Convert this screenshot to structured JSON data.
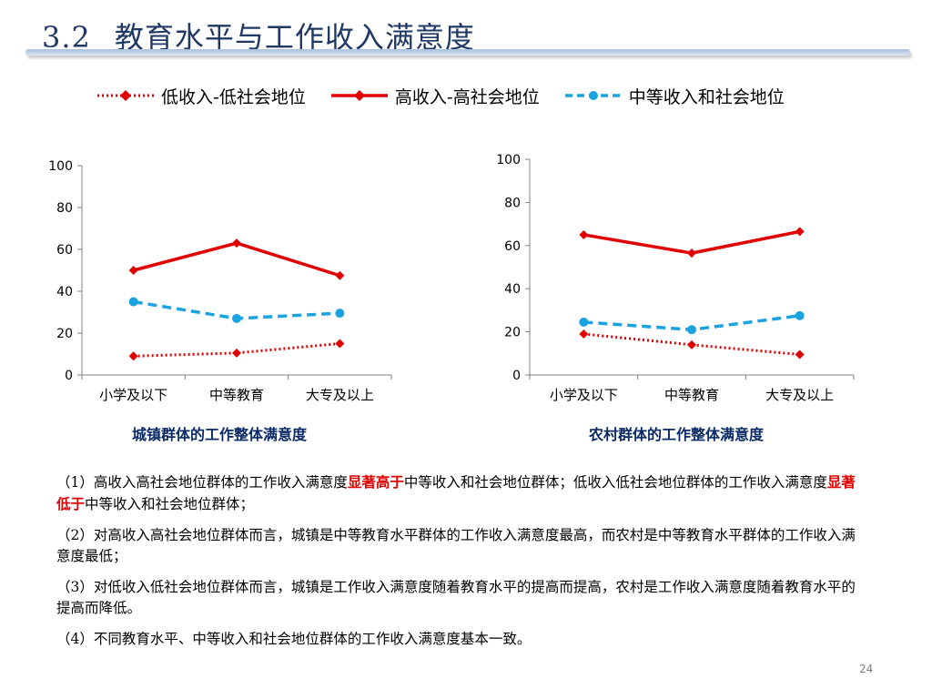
{
  "slide": {
    "title_num": "3.2",
    "title_text": "教育水平与工作收入满意度",
    "page_number": "24"
  },
  "legend": [
    {
      "label": "低收入-低社会地位",
      "color": "#e00000",
      "style": "dotted",
      "marker": "diamond"
    },
    {
      "label": "高收入-高社会地位",
      "color": "#e00000",
      "style": "solid",
      "marker": "diamond"
    },
    {
      "label": "中等收入和社会地位",
      "color": "#1aa3e0",
      "style": "dashed",
      "marker": "circle"
    }
  ],
  "chart_data": [
    {
      "type": "line",
      "title": "城镇群体的工作整体满意度",
      "categories": [
        "小学及以下",
        "中等教育",
        "大专及以上"
      ],
      "ylim": [
        0,
        100
      ],
      "yticks": [
        0,
        20,
        40,
        60,
        80,
        100
      ],
      "grid": false,
      "series": [
        {
          "name": "低收入-低社会地位",
          "values": [
            9,
            10.5,
            15
          ]
        },
        {
          "name": "高收入-高社会地位",
          "values": [
            50,
            63,
            47.5
          ]
        },
        {
          "name": "中等收入和社会地位",
          "values": [
            35,
            27,
            29.5
          ]
        }
      ]
    },
    {
      "type": "line",
      "title": "农村群体的工作整体满意度",
      "categories": [
        "小学及以下",
        "中等教育",
        "大专及以上"
      ],
      "ylim": [
        0,
        100
      ],
      "yticks": [
        0,
        20,
        40,
        60,
        80,
        100
      ],
      "grid": false,
      "series": [
        {
          "name": "低收入-低社会地位",
          "values": [
            19,
            14,
            9.5
          ]
        },
        {
          "name": "高收入-高社会地位",
          "values": [
            65,
            56.5,
            66.5
          ]
        },
        {
          "name": "中等收入和社会地位",
          "values": [
            24.5,
            21,
            27.5
          ]
        }
      ]
    }
  ],
  "notes": [
    {
      "pre": "（1）高收入高社会地位群体的工作收入满意度",
      "hl1": "显著高于",
      "mid": "中等收入和社会地位群体；低收入低社会地位群体的工作收入满意度",
      "hl2": "显著低于",
      "post": "中等收入和社会地位群体；"
    },
    {
      "text": "（2）对高收入高社会地位群体而言，城镇是中等教育水平群体的工作收入满意度最高，而农村是中等教育水平群体的工作收入满意度最低；"
    },
    {
      "text": "（3）对低收入低社会地位群体而言，城镇是工作收入满意度随着教育水平的提高而提高，农村是工作收入满意度随着教育水平的提高而降低。"
    },
    {
      "text": "（4）不同教育水平、中等收入和社会地位群体的工作收入满意度基本一致。"
    }
  ]
}
